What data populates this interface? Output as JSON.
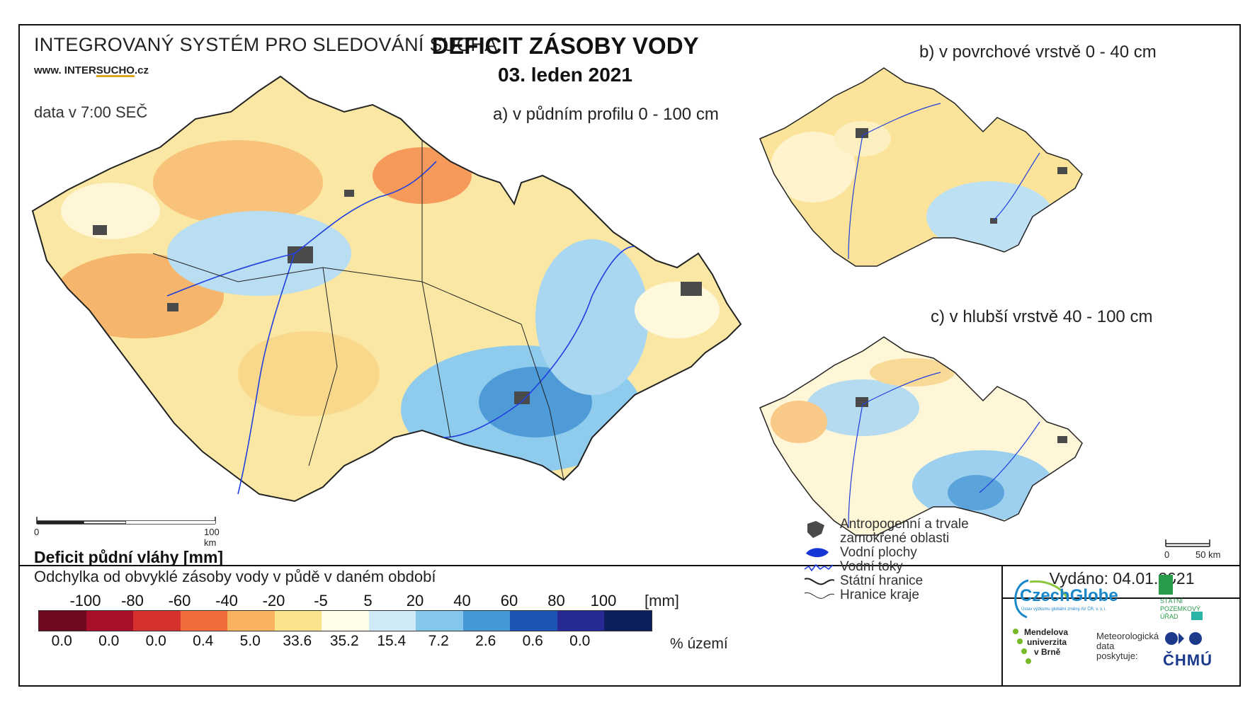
{
  "header": {
    "system_title": "INTEGROVANÝ SYSTÉM PRO SLEDOVÁNÍ SUCHA",
    "url_prefix": "www. INTER",
    "url_main": "SUCHO",
    "url_suffix": ".cz",
    "data_time": "data v 7:00 SEČ",
    "title": "DEFICIT ZÁSOBY VODY",
    "date": "03. leden 2021"
  },
  "maps": {
    "a_label": "a) v půdním profilu 0 - 100 cm",
    "b_label": "b) v povrchové vrstvě 0 - 40 cm",
    "c_label": "c) v hlubší vrstvě 40 - 100 cm"
  },
  "scale_main": {
    "start": "0",
    "end": "100 km"
  },
  "scale_small": {
    "start": "0",
    "end": "50 km"
  },
  "legend": {
    "title": "Deficit půdní vláhy  [mm]",
    "subtitle": "Odchylka od obvyklé zásoby vody v půdě v daném období",
    "ticks": [
      "-100",
      "-80",
      "-60",
      "-40",
      "-20",
      "-5",
      "5",
      "20",
      "40",
      "60",
      "80",
      "100"
    ],
    "unit_mm": "[mm]",
    "colors": [
      "#6e0a1e",
      "#a8102a",
      "#d5322f",
      "#f26b3a",
      "#f9b25f",
      "#fbe38e",
      "#fffce8",
      "#cfeaf6",
      "#83c8ea",
      "#4597d6",
      "#1d55b5",
      "#272a95",
      "#0d1f5a"
    ],
    "percentages": [
      "0.0",
      "0.0",
      "0.0",
      "0.4",
      "5.0",
      "33.6",
      "35.2",
      "15.4",
      "7.2",
      "2.6",
      "0.6",
      "0.0"
    ],
    "unit_pct": "% území"
  },
  "symbols": [
    {
      "icon": "urban-area-icon",
      "label": "Antropogenní a trvale"
    },
    {
      "icon": "",
      "label": "zamokřené oblasti"
    },
    {
      "icon": "water-body-icon",
      "label": "Vodní plochy"
    },
    {
      "icon": "river-icon",
      "label": "Vodní toky"
    },
    {
      "icon": "state-border-icon",
      "label": "Státní hranice"
    },
    {
      "icon": "region-border-icon",
      "label": "Hranice kraje"
    }
  ],
  "issued": "Vydáno: 04.01.2021",
  "logos": {
    "czechglobe": "CzechGlobe",
    "czechglobe_sub": "Ústav výzkumu globální změny AV ČR, v. v. i.",
    "spu": [
      "STÁTNÍ",
      "POZEMKOVÝ",
      "ÚŘAD"
    ],
    "mendel": [
      "Mendelova",
      "univerzita",
      "v Brně"
    ],
    "met": [
      "Meteorologická",
      "data",
      "poskytuje:"
    ],
    "chmu": "ČHMÚ"
  },
  "colors": {
    "urban": "#4a4a4a",
    "river": "#1f3fe0",
    "border": "#222222"
  }
}
